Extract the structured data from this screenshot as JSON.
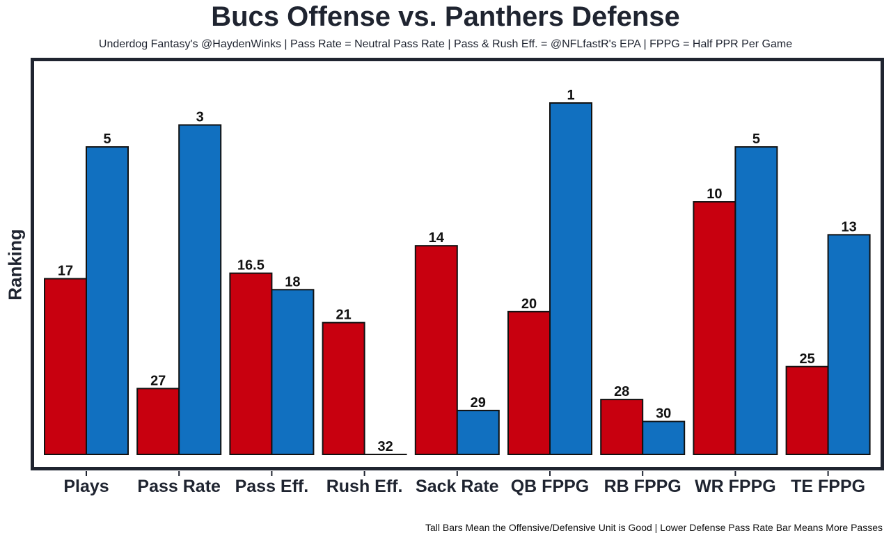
{
  "chart_data": {
    "type": "bar",
    "title": "Bucs Offense vs. Panthers Defense",
    "subtitle": "Underdog Fantasy's @HaydenWinks | Pass Rate = Neutral Pass Rate | Pass & Rush Eff. = @NFLfastR's EPA | FPPG = Half PPR Per Game",
    "xlabel": "",
    "ylabel": "Ranking",
    "caption": "Tall Bars Mean the Offensive/Defensive Unit is Good | Lower Defense Pass Rate Bar Means More Passes",
    "categories": [
      "Plays",
      "Pass Rate",
      "Pass Eff.",
      "Rush Eff.",
      "Sack Rate",
      "QB FPPG",
      "RB FPPG",
      "WR FPPG",
      "TE FPPG"
    ],
    "series": [
      {
        "name": "Bucs Offense",
        "color": "#c8000f",
        "ranks": [
          17,
          27,
          16.5,
          21,
          14,
          20,
          28,
          10,
          25
        ]
      },
      {
        "name": "Panthers Defense",
        "color": "#1170c0",
        "ranks": [
          5,
          3,
          18,
          32,
          29,
          1,
          30,
          5,
          13
        ]
      }
    ],
    "bar_height_rule": "33 - rank (rank 1 tallest, rank 32 flat)",
    "ylim": [
      1,
      32
    ],
    "grid": false,
    "legend": "none",
    "y_ticks_shown": false
  }
}
